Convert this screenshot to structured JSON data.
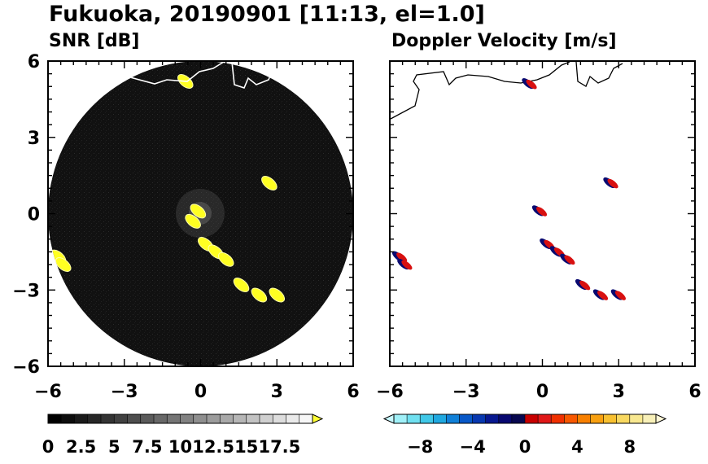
{
  "figure_title": "Fukuoka, 20190901 [11:13, el=1.0]",
  "chart_data": [
    {
      "type": "heatmap",
      "title": "SNR [dB]",
      "xlim": [
        -6,
        6
      ],
      "ylim": [
        -6,
        6
      ],
      "xticks": [
        "−6",
        "−3",
        "0",
        "3",
        "6"
      ],
      "yticks": [
        "6",
        "3",
        "0",
        "−3",
        "−6"
      ],
      "radar_range": 6,
      "echo_regions": [
        {
          "x": -5.6,
          "y": -1.7
        },
        {
          "x": -5.4,
          "y": -2.0
        },
        {
          "x": -0.1,
          "y": 0.1
        },
        {
          "x": -0.3,
          "y": -0.3
        },
        {
          "x": 0.2,
          "y": -1.2
        },
        {
          "x": 0.6,
          "y": -1.5
        },
        {
          "x": 1.0,
          "y": -1.8
        },
        {
          "x": 1.6,
          "y": -2.8
        },
        {
          "x": 2.3,
          "y": -3.2
        },
        {
          "x": 3.0,
          "y": -3.2
        },
        {
          "x": 2.7,
          "y": 1.2
        },
        {
          "x": -0.6,
          "y": 5.2
        }
      ],
      "colorbar": {
        "ticks": [
          "0",
          "2.5",
          "5",
          "7.5",
          "10",
          "12.5",
          "15",
          "17.5"
        ],
        "range": [
          0,
          20
        ],
        "extend": "max",
        "colors": [
          "#000000",
          "#0d0d0d",
          "#1a1a1a",
          "#272727",
          "#343434",
          "#414141",
          "#4e4e4e",
          "#5b5b5b",
          "#686868",
          "#757575",
          "#828282",
          "#8f8f8f",
          "#9c9c9c",
          "#a9a9a9",
          "#b6b6b6",
          "#c3c3c3",
          "#d0d0d0",
          "#dddddd",
          "#eaeaea",
          "#f7f7f7"
        ],
        "extend_color": "#ffff33"
      }
    },
    {
      "type": "heatmap",
      "title": "Doppler Velocity [m/s]",
      "xlim": [
        -6,
        6
      ],
      "ylim": [
        -6,
        6
      ],
      "xticks": [
        "−6",
        "−3",
        "0",
        "3",
        "6"
      ],
      "yticks": [
        "6",
        "3",
        "0",
        "−3",
        "−6"
      ],
      "echo_regions": [
        {
          "x": -5.6,
          "y": -1.7
        },
        {
          "x": -5.4,
          "y": -2.0
        },
        {
          "x": -0.1,
          "y": 0.1
        },
        {
          "x": 0.2,
          "y": -1.2
        },
        {
          "x": 0.6,
          "y": -1.5
        },
        {
          "x": 1.0,
          "y": -1.8
        },
        {
          "x": 1.6,
          "y": -2.8
        },
        {
          "x": 2.3,
          "y": -3.2
        },
        {
          "x": 3.0,
          "y": -3.2
        },
        {
          "x": 2.7,
          "y": 1.2
        },
        {
          "x": -0.5,
          "y": 5.1
        }
      ],
      "colorbar": {
        "ticks": [
          "−8",
          "−4",
          "0",
          "4",
          "8"
        ],
        "range": [
          -10,
          10
        ],
        "extend": "both",
        "colors": [
          "#a0f0f8",
          "#70e0f0",
          "#40c8e8",
          "#20a8e0",
          "#1080d8",
          "#0858c8",
          "#0838b0",
          "#081890",
          "#080870",
          "#080850",
          "#c80000",
          "#e01818",
          "#f03000",
          "#f85800",
          "#f88000",
          "#f8a010",
          "#f8c030",
          "#f8d860",
          "#f8e890",
          "#f8f0b8"
        ],
        "extend_low_color": "#c8f8ff",
        "extend_high_color": "#fff8d8"
      }
    }
  ]
}
